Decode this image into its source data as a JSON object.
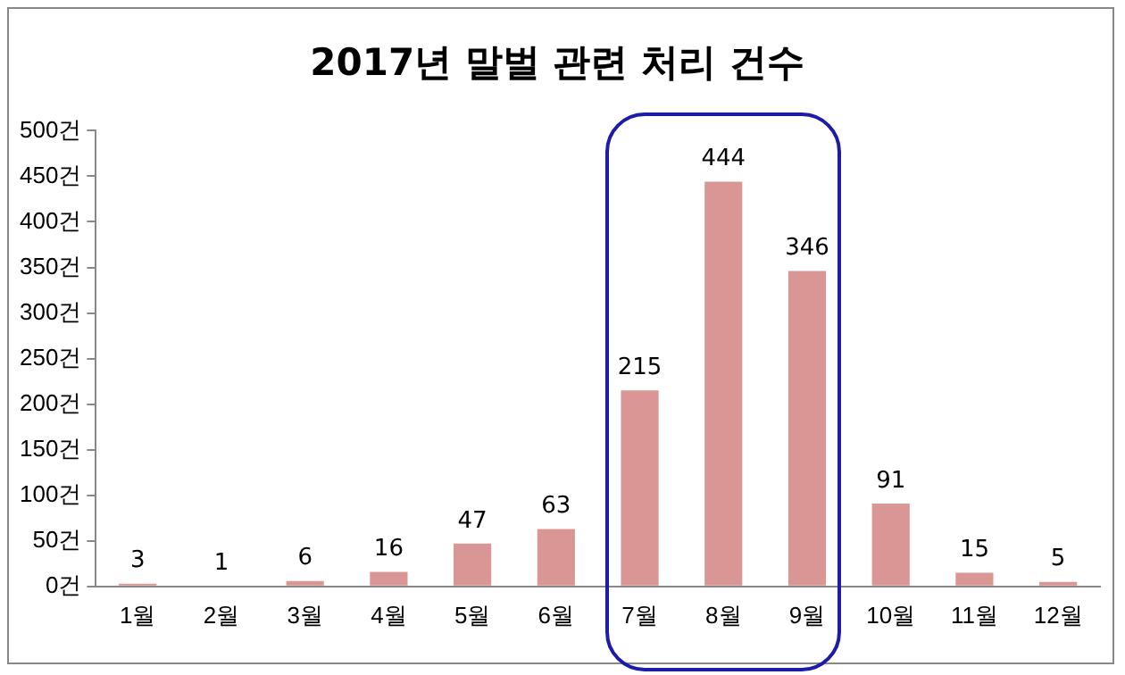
{
  "chart_data": {
    "type": "bar",
    "title": "2017년 말벌 관련 처리 건수",
    "categories": [
      "1월",
      "2월",
      "3월",
      "4월",
      "5월",
      "6월",
      "7월",
      "8월",
      "9월",
      "10월",
      "11월",
      "12월"
    ],
    "values": [
      3,
      1,
      6,
      16,
      47,
      63,
      215,
      444,
      346,
      91,
      15,
      5
    ],
    "color": "#d99694",
    "ylim": [
      0,
      500
    ],
    "yticks": [
      {
        "value": 0,
        "label": "0건"
      },
      {
        "value": 50,
        "label": "50건"
      },
      {
        "value": 100,
        "label": "100건"
      },
      {
        "value": 150,
        "label": "150건"
      },
      {
        "value": 200,
        "label": "200건"
      },
      {
        "value": 250,
        "label": "250건"
      },
      {
        "value": 300,
        "label": "300건"
      },
      {
        "value": 350,
        "label": "350건"
      },
      {
        "value": 400,
        "label": "400건"
      },
      {
        "value": 450,
        "label": "450건"
      },
      {
        "value": 500,
        "label": "500건"
      }
    ],
    "grid": false,
    "legend": false,
    "data_labels": true
  }
}
